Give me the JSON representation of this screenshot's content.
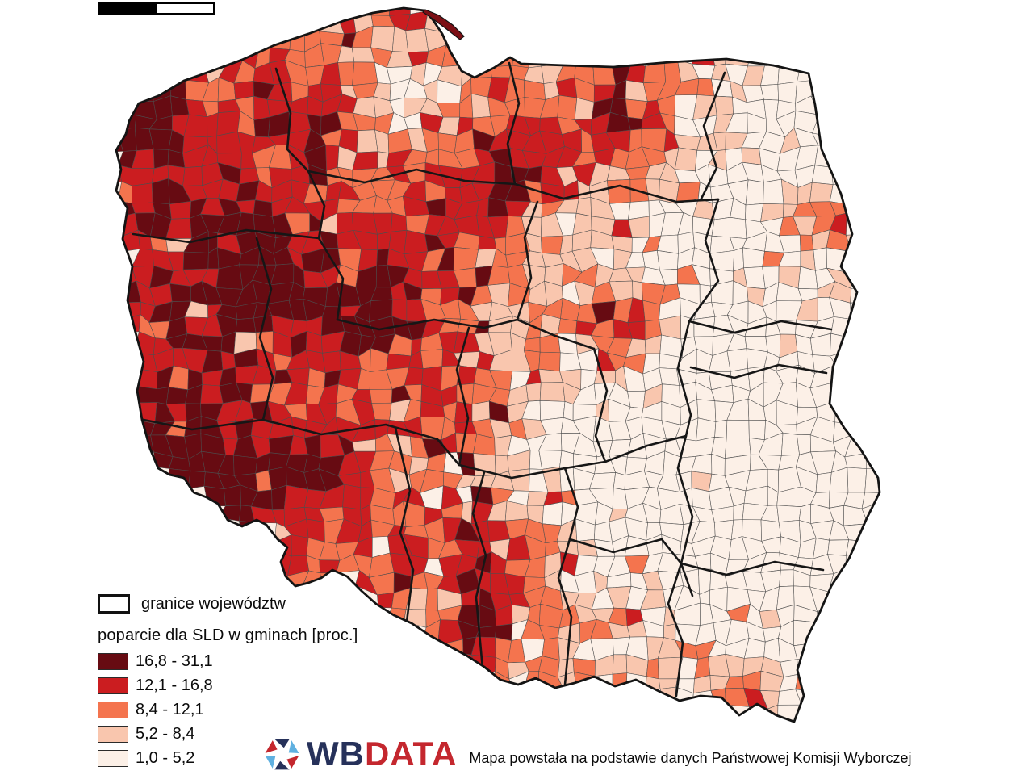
{
  "scalebar": {
    "fill_left": "#000000",
    "fill_right": "#ffffff"
  },
  "legend": {
    "border_item_label": "granice województw",
    "title": "poparcie dla SLD w gminach [proc.]",
    "classes": [
      {
        "label": "16,8 - 31,1",
        "color": "#670b12"
      },
      {
        "label": "12,1 - 16,8",
        "color": "#cb1d20"
      },
      {
        "label": "8,4 - 12,1",
        "color": "#f4744e"
      },
      {
        "label": "5,2 - 8,4",
        "color": "#f9c6ae"
      },
      {
        "label": "1,0 - 5,2",
        "color": "#fcf0e7"
      }
    ]
  },
  "map": {
    "palette": [
      "#670b12",
      "#cb1d20",
      "#f4744e",
      "#f9c6ae",
      "#fcf0e7"
    ],
    "outline_color": "#141414",
    "voivodeship_border_color": "#161616",
    "cell_border_color": "#4d4d4d",
    "hel_peninsula_color": "#7c0f15"
  },
  "footer": {
    "logo_prefix": "WB",
    "logo_suffix": "DATA",
    "logo_prefix_color": "#26315a",
    "logo_suffix_color": "#c4272e",
    "icon_colors": [
      "#26315a",
      "#5fb0e0",
      "#c4272e"
    ],
    "attribution": "Mapa powstała na podstawie danych Państwowej Komisji Wyborczej"
  }
}
